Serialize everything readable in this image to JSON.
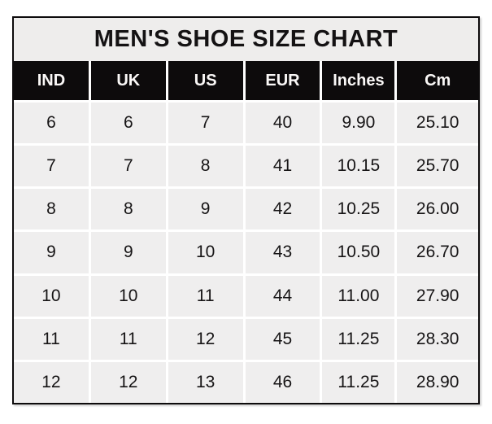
{
  "chart_data": {
    "type": "table",
    "title": "MEN'S SHOE SIZE CHART",
    "columns": [
      "IND",
      "UK",
      "US",
      "EUR",
      "Inches",
      "Cm"
    ],
    "rows": [
      [
        "6",
        "6",
        "7",
        "40",
        "9.90",
        "25.10"
      ],
      [
        "7",
        "7",
        "8",
        "41",
        "10.15",
        "25.70"
      ],
      [
        "8",
        "8",
        "9",
        "42",
        "10.25",
        "26.00"
      ],
      [
        "9",
        "9",
        "10",
        "43",
        "10.50",
        "26.70"
      ],
      [
        "10",
        "10",
        "11",
        "44",
        "11.00",
        "27.90"
      ],
      [
        "11",
        "11",
        "12",
        "45",
        "11.25",
        "28.30"
      ],
      [
        "12",
        "12",
        "13",
        "46",
        "11.25",
        "28.90"
      ]
    ],
    "layout": {
      "header_style": "black bar with white bold labels",
      "gridlines": "white, on light-gray cells",
      "legend": "none",
      "column_count": 6,
      "row_count": 7
    }
  },
  "colors": {
    "page_bg": "#ffffff",
    "table_border": "#0d0b0c",
    "header_bg": "#0d0b0c",
    "header_text": "#faf8f7",
    "title_bg": "#eeedec",
    "cell_bg": "#efeeee",
    "cell_text": "#161415"
  }
}
